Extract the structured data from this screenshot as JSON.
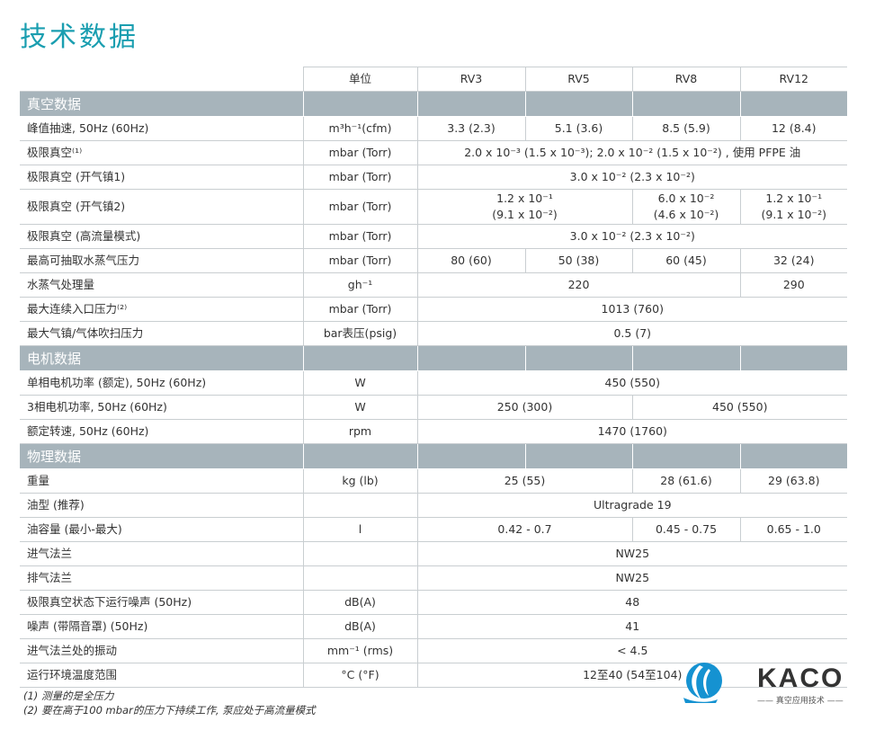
{
  "title": "技术数据",
  "header": [
    "",
    "单位",
    "RV3",
    "RV5",
    "RV8",
    "RV12"
  ],
  "rows": [
    {
      "type": "section",
      "label": "真空数据"
    },
    {
      "label": "峰值抽速, 50Hz (60Hz)",
      "unit": "m³h⁻¹(cfm)",
      "cells": [
        {
          "t": "3.3 (2.3)",
          "s": 1
        },
        {
          "t": "5.1 (3.6)",
          "s": 1
        },
        {
          "t": "8.5 (5.9)",
          "s": 1
        },
        {
          "t": "12 (8.4)",
          "s": 1
        }
      ]
    },
    {
      "label": "极限真空⁽¹⁾",
      "unit": "mbar (Torr)",
      "cells": [
        {
          "t": "2.0 x 10⁻³ (1.5 x 10⁻³); 2.0 x 10⁻² (1.5 x 10⁻²) , 使用 PFPE 油",
          "s": 4
        }
      ]
    },
    {
      "label": "极限真空 (开气镇1)",
      "unit": "mbar (Torr)",
      "cells": [
        {
          "t": "3.0 x 10⁻² (2.3 x 10⁻²)",
          "s": 4
        }
      ]
    },
    {
      "label": "极限真空 (开气镇2)",
      "unit": "mbar (Torr)",
      "tall": true,
      "cells": [
        {
          "t": "1.2 x 10⁻¹\n(9.1 x 10⁻²)",
          "s": 2
        },
        {
          "t": "6.0 x 10⁻²\n(4.6 x 10⁻²)",
          "s": 1
        },
        {
          "t": "1.2 x 10⁻¹\n(9.1 x 10⁻²)",
          "s": 1
        }
      ]
    },
    {
      "label": "极限真空 (高流量模式)",
      "unit": "mbar (Torr)",
      "cells": [
        {
          "t": "3.0 x 10⁻² (2.3 x 10⁻²)",
          "s": 4
        }
      ]
    },
    {
      "label": "最高可抽取水蒸气压力",
      "unit": "mbar (Torr)",
      "cells": [
        {
          "t": "80 (60)",
          "s": 1
        },
        {
          "t": "50 (38)",
          "s": 1
        },
        {
          "t": "60 (45)",
          "s": 1
        },
        {
          "t": "32 (24)",
          "s": 1
        }
      ]
    },
    {
      "label": "水蒸气处理量",
      "unit": "gh⁻¹",
      "cells": [
        {
          "t": "220",
          "s": 3
        },
        {
          "t": "290",
          "s": 1
        }
      ]
    },
    {
      "label": "最大连续入口压力⁽²⁾",
      "unit": "mbar (Torr)",
      "cells": [
        {
          "t": "1013 (760)",
          "s": 4
        }
      ]
    },
    {
      "label": "最大气镇/气体吹扫压力",
      "unit": "bar表压(psig)",
      "cells": [
        {
          "t": "0.5 (7)",
          "s": 4
        }
      ]
    },
    {
      "type": "section",
      "label": "电机数据"
    },
    {
      "label": "单相电机功率 (额定), 50Hz (60Hz)",
      "unit": "W",
      "cells": [
        {
          "t": "450 (550)",
          "s": 4
        }
      ]
    },
    {
      "label": "3相电机功率, 50Hz (60Hz)",
      "unit": "W",
      "cells": [
        {
          "t": "250 (300)",
          "s": 2
        },
        {
          "t": "450 (550)",
          "s": 2
        }
      ]
    },
    {
      "label": "额定转速, 50Hz (60Hz)",
      "unit": "rpm",
      "cells": [
        {
          "t": "1470 (1760)",
          "s": 4
        }
      ]
    },
    {
      "type": "section",
      "label": "物理数据"
    },
    {
      "label": "重量",
      "unit": "kg (lb)",
      "cells": [
        {
          "t": "25 (55)",
          "s": 2
        },
        {
          "t": "28 (61.6)",
          "s": 1
        },
        {
          "t": "29 (63.8)",
          "s": 1
        }
      ]
    },
    {
      "label": "油型 (推荐)",
      "unit": "",
      "cells": [
        {
          "t": "Ultragrade 19",
          "s": 4
        }
      ]
    },
    {
      "label": "油容量 (最小-最大)",
      "unit": "l",
      "cells": [
        {
          "t": "0.42 - 0.7",
          "s": 2
        },
        {
          "t": "0.45 - 0.75",
          "s": 1
        },
        {
          "t": "0.65 - 1.0",
          "s": 1
        }
      ]
    },
    {
      "label": "进气法兰",
      "unit": "",
      "cells": [
        {
          "t": "NW25",
          "s": 4
        }
      ]
    },
    {
      "label": "排气法兰",
      "unit": "",
      "cells": [
        {
          "t": "NW25",
          "s": 4
        }
      ]
    },
    {
      "label": "极限真空状态下运行噪声 (50Hz)",
      "unit": "dB(A)",
      "cells": [
        {
          "t": "48",
          "s": 4
        }
      ]
    },
    {
      "label": "噪声 (带隔音罩) (50Hz)",
      "unit": "dB(A)",
      "cells": [
        {
          "t": "41",
          "s": 4
        }
      ]
    },
    {
      "label": "进气法兰处的振动",
      "unit": "mm⁻¹ (rms)",
      "cells": [
        {
          "t": "< 4.5",
          "s": 4
        }
      ]
    },
    {
      "label": "运行环境温度范围",
      "unit": "°C (°F)",
      "cells": [
        {
          "t": "12至40 (54至104)",
          "s": 4
        }
      ]
    }
  ],
  "footnotes": [
    "(1) 测量的是全压力",
    "(2) 要在高于100 mbar的压力下持续工作, 泵应处于高流量模式"
  ],
  "logo": {
    "name": "KACO",
    "tagline": "—— 真空应用技术 ——"
  },
  "colors": {
    "title": "#1a9eb0",
    "section": "#a7b4bb",
    "logo_blue": "#1592d1"
  }
}
